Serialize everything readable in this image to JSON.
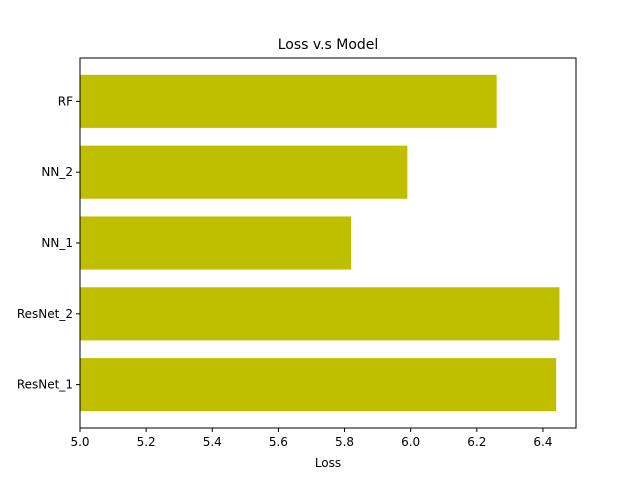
{
  "chart_data": {
    "type": "bar",
    "orientation": "horizontal",
    "title": "Loss v.s Model",
    "xlabel": "Loss",
    "ylabel": "",
    "categories": [
      "ResNet_1",
      "ResNet_2",
      "NN_1",
      "NN_2",
      "RF"
    ],
    "values": [
      6.44,
      6.45,
      5.82,
      5.99,
      6.26
    ],
    "xlim": [
      5.0,
      6.5
    ],
    "xticks": [
      "5.0",
      "5.2",
      "5.4",
      "5.6",
      "5.8",
      "6.0",
      "6.2",
      "6.4"
    ],
    "bar_color": "#bfbf00",
    "grid": false
  }
}
